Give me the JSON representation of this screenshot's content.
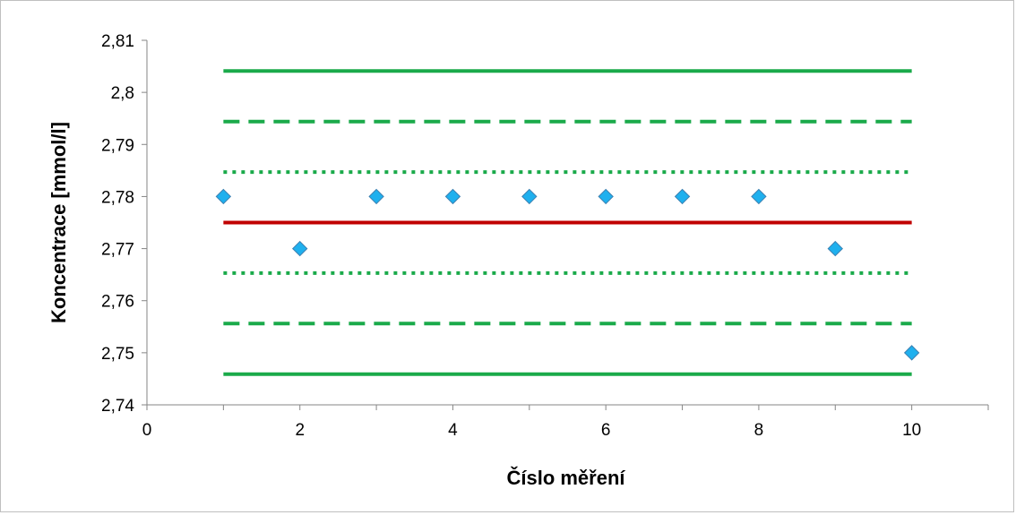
{
  "chart_data": {
    "type": "scatter",
    "title": "",
    "xlabel": "Číslo měření",
    "ylabel": "Koncentrace [mmol/l]",
    "xlim": [
      0,
      11
    ],
    "ylim": [
      2.74,
      2.81
    ],
    "xticks": [
      0,
      2,
      4,
      6,
      8,
      10
    ],
    "xtick_labels": [
      "0",
      "2",
      "4",
      "6",
      "8",
      "10"
    ],
    "yticks": [
      2.74,
      2.75,
      2.76,
      2.77,
      2.78,
      2.79,
      2.8,
      2.81
    ],
    "ytick_labels": [
      "2,74",
      "2,75",
      "2,76",
      "2,77",
      "2,78",
      "2,79",
      "2,8",
      "2,81"
    ],
    "grid": false,
    "legend": "none",
    "series": [
      {
        "type": "scatter",
        "marker": "diamond",
        "color": "#1fb0ee",
        "x": [
          1,
          2,
          3,
          4,
          5,
          6,
          7,
          8,
          9,
          10
        ],
        "y": [
          2.78,
          2.77,
          2.78,
          2.78,
          2.78,
          2.78,
          2.78,
          2.78,
          2.77,
          2.75
        ]
      }
    ],
    "reference_lines": [
      {
        "y": 2.8041,
        "x": [
          1,
          10
        ],
        "style": "solid",
        "color": "#1aaa4a"
      },
      {
        "y": 2.7944,
        "x": [
          1,
          10
        ],
        "style": "dashed",
        "color": "#1aaa4a"
      },
      {
        "y": 2.7847,
        "x": [
          1,
          10
        ],
        "style": "dotted",
        "color": "#1aaa4a"
      },
      {
        "y": 2.775,
        "x": [
          1,
          10
        ],
        "style": "solid",
        "color": "#c00000"
      },
      {
        "y": 2.7653,
        "x": [
          1,
          10
        ],
        "style": "dotted",
        "color": "#1aaa4a"
      },
      {
        "y": 2.7556,
        "x": [
          1,
          10
        ],
        "style": "dashed",
        "color": "#1aaa4a"
      },
      {
        "y": 2.7459,
        "x": [
          1,
          10
        ],
        "style": "solid",
        "color": "#1aaa4a"
      }
    ]
  }
}
